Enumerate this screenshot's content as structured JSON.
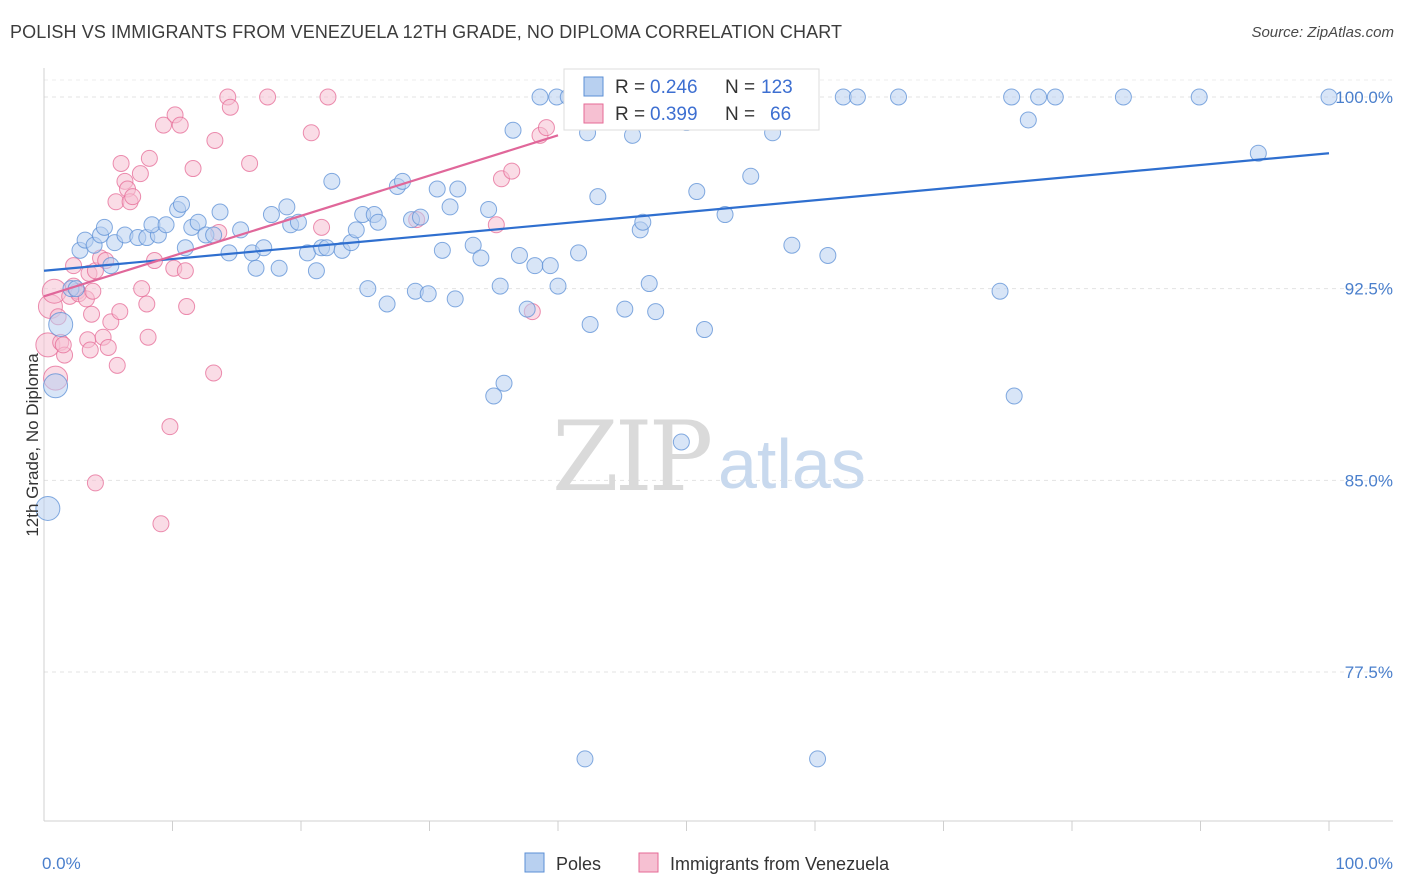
{
  "title": "POLISH VS IMMIGRANTS FROM VENEZUELA 12TH GRADE, NO DIPLOMA CORRELATION CHART",
  "source": "Source: ZipAtlas.com",
  "watermark": {
    "zip": "ZIP",
    "atlas": "atlas"
  },
  "colors": {
    "poles": "#5b8fd6",
    "poles_fill": "#b8d0f0",
    "venezuela": "#e66a96",
    "venezuela_fill": "#f6c0d2",
    "tick": "#4a7fcc"
  },
  "legend": {
    "r_label": "R =",
    "n_label": "N =",
    "poles": {
      "r": "0.246",
      "n": "123"
    },
    "venezuela": {
      "r": "0.399",
      "n": "66"
    }
  },
  "bottom_legend": {
    "poles": "Poles",
    "venezuela": "Immigrants from Venezuela"
  },
  "chart_data": {
    "type": "scatter",
    "title": "POLISH VS IMMIGRANTS FROM VENEZUELA 12TH GRADE, NO DIPLOMA CORRELATION CHART",
    "xlabel": "",
    "ylabel": "12th Grade, No Diploma",
    "xlim": [
      0,
      100
    ],
    "ylim": [
      71.5,
      100.9
    ],
    "x_tick_labels": [
      "0.0%",
      "100.0%"
    ],
    "y_ticks": [
      77.5,
      85.0,
      92.5,
      100.0
    ],
    "y_tick_labels": [
      "77.5%",
      "85.0%",
      "92.5%",
      "100.0%"
    ],
    "series": [
      {
        "name": "Poles",
        "r": 0.246,
        "n": 123,
        "trend": {
          "x": [
            0,
            100
          ],
          "y": [
            93.2,
            97.8
          ]
        },
        "points": [
          [
            0.3,
            83.9
          ],
          [
            0.9,
            88.7
          ],
          [
            1.3,
            91.1
          ],
          [
            2.1,
            92.5
          ],
          [
            2.5,
            92.5
          ],
          [
            2.8,
            94.0
          ],
          [
            3.2,
            94.4
          ],
          [
            3.9,
            94.2
          ],
          [
            4.4,
            94.6
          ],
          [
            4.7,
            94.9
          ],
          [
            5.2,
            93.4
          ],
          [
            5.5,
            94.3
          ],
          [
            6.3,
            94.6
          ],
          [
            7.3,
            94.5
          ],
          [
            8.0,
            94.5
          ],
          [
            8.9,
            94.6
          ],
          [
            8.4,
            95.0
          ],
          [
            9.5,
            95.0
          ],
          [
            10.4,
            95.6
          ],
          [
            10.7,
            95.8
          ],
          [
            11.0,
            94.1
          ],
          [
            11.5,
            94.9
          ],
          [
            12.0,
            95.1
          ],
          [
            12.6,
            94.6
          ],
          [
            13.2,
            94.6
          ],
          [
            13.7,
            95.5
          ],
          [
            14.4,
            93.9
          ],
          [
            15.3,
            94.8
          ],
          [
            16.2,
            93.9
          ],
          [
            16.5,
            93.3
          ],
          [
            17.1,
            94.1
          ],
          [
            17.7,
            95.4
          ],
          [
            18.3,
            93.3
          ],
          [
            18.9,
            95.7
          ],
          [
            19.2,
            95.0
          ],
          [
            19.8,
            95.1
          ],
          [
            20.5,
            93.9
          ],
          [
            21.2,
            93.2
          ],
          [
            21.6,
            94.1
          ],
          [
            22.0,
            94.1
          ],
          [
            22.4,
            96.7
          ],
          [
            23.2,
            94.0
          ],
          [
            23.9,
            94.3
          ],
          [
            24.3,
            94.8
          ],
          [
            24.8,
            95.4
          ],
          [
            25.7,
            95.4
          ],
          [
            25.2,
            92.5
          ],
          [
            26.0,
            95.1
          ],
          [
            26.7,
            91.9
          ],
          [
            27.5,
            96.5
          ],
          [
            27.9,
            96.7
          ],
          [
            28.6,
            95.2
          ],
          [
            28.9,
            92.4
          ],
          [
            29.3,
            95.3
          ],
          [
            29.9,
            92.3
          ],
          [
            30.6,
            96.4
          ],
          [
            31.0,
            94.0
          ],
          [
            31.6,
            95.7
          ],
          [
            32.0,
            92.1
          ],
          [
            32.2,
            96.4
          ],
          [
            33.4,
            94.2
          ],
          [
            34.0,
            93.7
          ],
          [
            34.6,
            95.6
          ],
          [
            35.0,
            88.3
          ],
          [
            35.5,
            92.6
          ],
          [
            35.8,
            88.8
          ],
          [
            36.5,
            98.7
          ],
          [
            37.0,
            93.8
          ],
          [
            37.6,
            91.7
          ],
          [
            38.2,
            93.4
          ],
          [
            38.6,
            100.0
          ],
          [
            39.4,
            93.4
          ],
          [
            39.9,
            100.0
          ],
          [
            40.0,
            92.6
          ],
          [
            40.8,
            100.0
          ],
          [
            41.6,
            93.9
          ],
          [
            42.3,
            98.6
          ],
          [
            42.5,
            91.1
          ],
          [
            43.1,
            96.1
          ],
          [
            44.1,
            100.0
          ],
          [
            45.2,
            91.7
          ],
          [
            45.8,
            98.5
          ],
          [
            46.4,
            94.8
          ],
          [
            46.6,
            95.1
          ],
          [
            47.1,
            92.7
          ],
          [
            47.6,
            91.6
          ],
          [
            48.4,
            100.0
          ],
          [
            49.0,
            100.0
          ],
          [
            49.6,
            86.5
          ],
          [
            50.0,
            99.0
          ],
          [
            50.8,
            96.3
          ],
          [
            51.4,
            90.9
          ],
          [
            52.5,
            100.0
          ],
          [
            53.0,
            95.4
          ],
          [
            53.5,
            100.0
          ],
          [
            54.0,
            100.0
          ],
          [
            55.0,
            96.9
          ],
          [
            56.7,
            98.6
          ],
          [
            58.2,
            94.2
          ],
          [
            59.2,
            100.0
          ],
          [
            61.0,
            93.8
          ],
          [
            62.2,
            100.0
          ],
          [
            63.3,
            100.0
          ],
          [
            66.5,
            100.0
          ],
          [
            74.4,
            92.4
          ],
          [
            75.3,
            100.0
          ],
          [
            77.4,
            100.0
          ],
          [
            75.5,
            88.3
          ],
          [
            76.6,
            99.1
          ],
          [
            78.7,
            100.0
          ],
          [
            84.0,
            100.0
          ],
          [
            89.9,
            100.0
          ],
          [
            94.5,
            97.8
          ],
          [
            100.0,
            100.0
          ],
          [
            42.1,
            74.1
          ],
          [
            60.2,
            74.1
          ],
          [
            57.0,
            100.0
          ]
        ]
      },
      {
        "name": "Immigrants from Venezuela",
        "r": 0.399,
        "n": 66,
        "trend": {
          "x": [
            0,
            40.0
          ],
          "y": [
            92.2,
            98.5
          ]
        },
        "points": [
          [
            0.3,
            90.3
          ],
          [
            0.5,
            91.8
          ],
          [
            0.8,
            92.4
          ],
          [
            0.9,
            89.0
          ],
          [
            1.1,
            91.4
          ],
          [
            1.3,
            90.4
          ],
          [
            1.6,
            89.9
          ],
          [
            2.0,
            92.2
          ],
          [
            2.3,
            92.6
          ],
          [
            2.3,
            93.4
          ],
          [
            2.6,
            92.4
          ],
          [
            2.7,
            92.3
          ],
          [
            3.3,
            92.1
          ],
          [
            3.4,
            90.5
          ],
          [
            3.5,
            93.1
          ],
          [
            3.6,
            90.1
          ],
          [
            3.7,
            91.5
          ],
          [
            3.8,
            92.4
          ],
          [
            4.0,
            93.2
          ],
          [
            4.0,
            84.9
          ],
          [
            4.4,
            93.7
          ],
          [
            4.6,
            90.6
          ],
          [
            4.8,
            93.6
          ],
          [
            5.0,
            90.2
          ],
          [
            5.2,
            91.2
          ],
          [
            5.6,
            95.9
          ],
          [
            5.7,
            89.5
          ],
          [
            5.9,
            91.6
          ],
          [
            6.0,
            97.4
          ],
          [
            6.3,
            96.7
          ],
          [
            6.5,
            96.4
          ],
          [
            6.7,
            95.9
          ],
          [
            6.9,
            96.1
          ],
          [
            7.5,
            97.0
          ],
          [
            7.6,
            92.5
          ],
          [
            8.0,
            91.9
          ],
          [
            8.1,
            90.6
          ],
          [
            8.2,
            97.6
          ],
          [
            8.6,
            93.6
          ],
          [
            9.1,
            83.3
          ],
          [
            9.3,
            98.9
          ],
          [
            9.8,
            87.1
          ],
          [
            10.1,
            93.3
          ],
          [
            10.2,
            99.3
          ],
          [
            10.6,
            98.9
          ],
          [
            11.0,
            93.2
          ],
          [
            11.1,
            91.8
          ],
          [
            11.6,
            97.2
          ],
          [
            13.2,
            89.2
          ],
          [
            13.3,
            98.3
          ],
          [
            13.6,
            94.7
          ],
          [
            14.3,
            100.0
          ],
          [
            14.5,
            99.6
          ],
          [
            16.0,
            97.4
          ],
          [
            17.4,
            100.0
          ],
          [
            20.8,
            98.6
          ],
          [
            21.6,
            94.9
          ],
          [
            22.1,
            100.0
          ],
          [
            29.0,
            95.2
          ],
          [
            35.2,
            95.0
          ],
          [
            35.6,
            96.8
          ],
          [
            36.4,
            97.1
          ],
          [
            38.0,
            91.6
          ],
          [
            38.6,
            98.5
          ],
          [
            39.1,
            98.8
          ],
          [
            1.5,
            90.3
          ]
        ]
      }
    ]
  }
}
